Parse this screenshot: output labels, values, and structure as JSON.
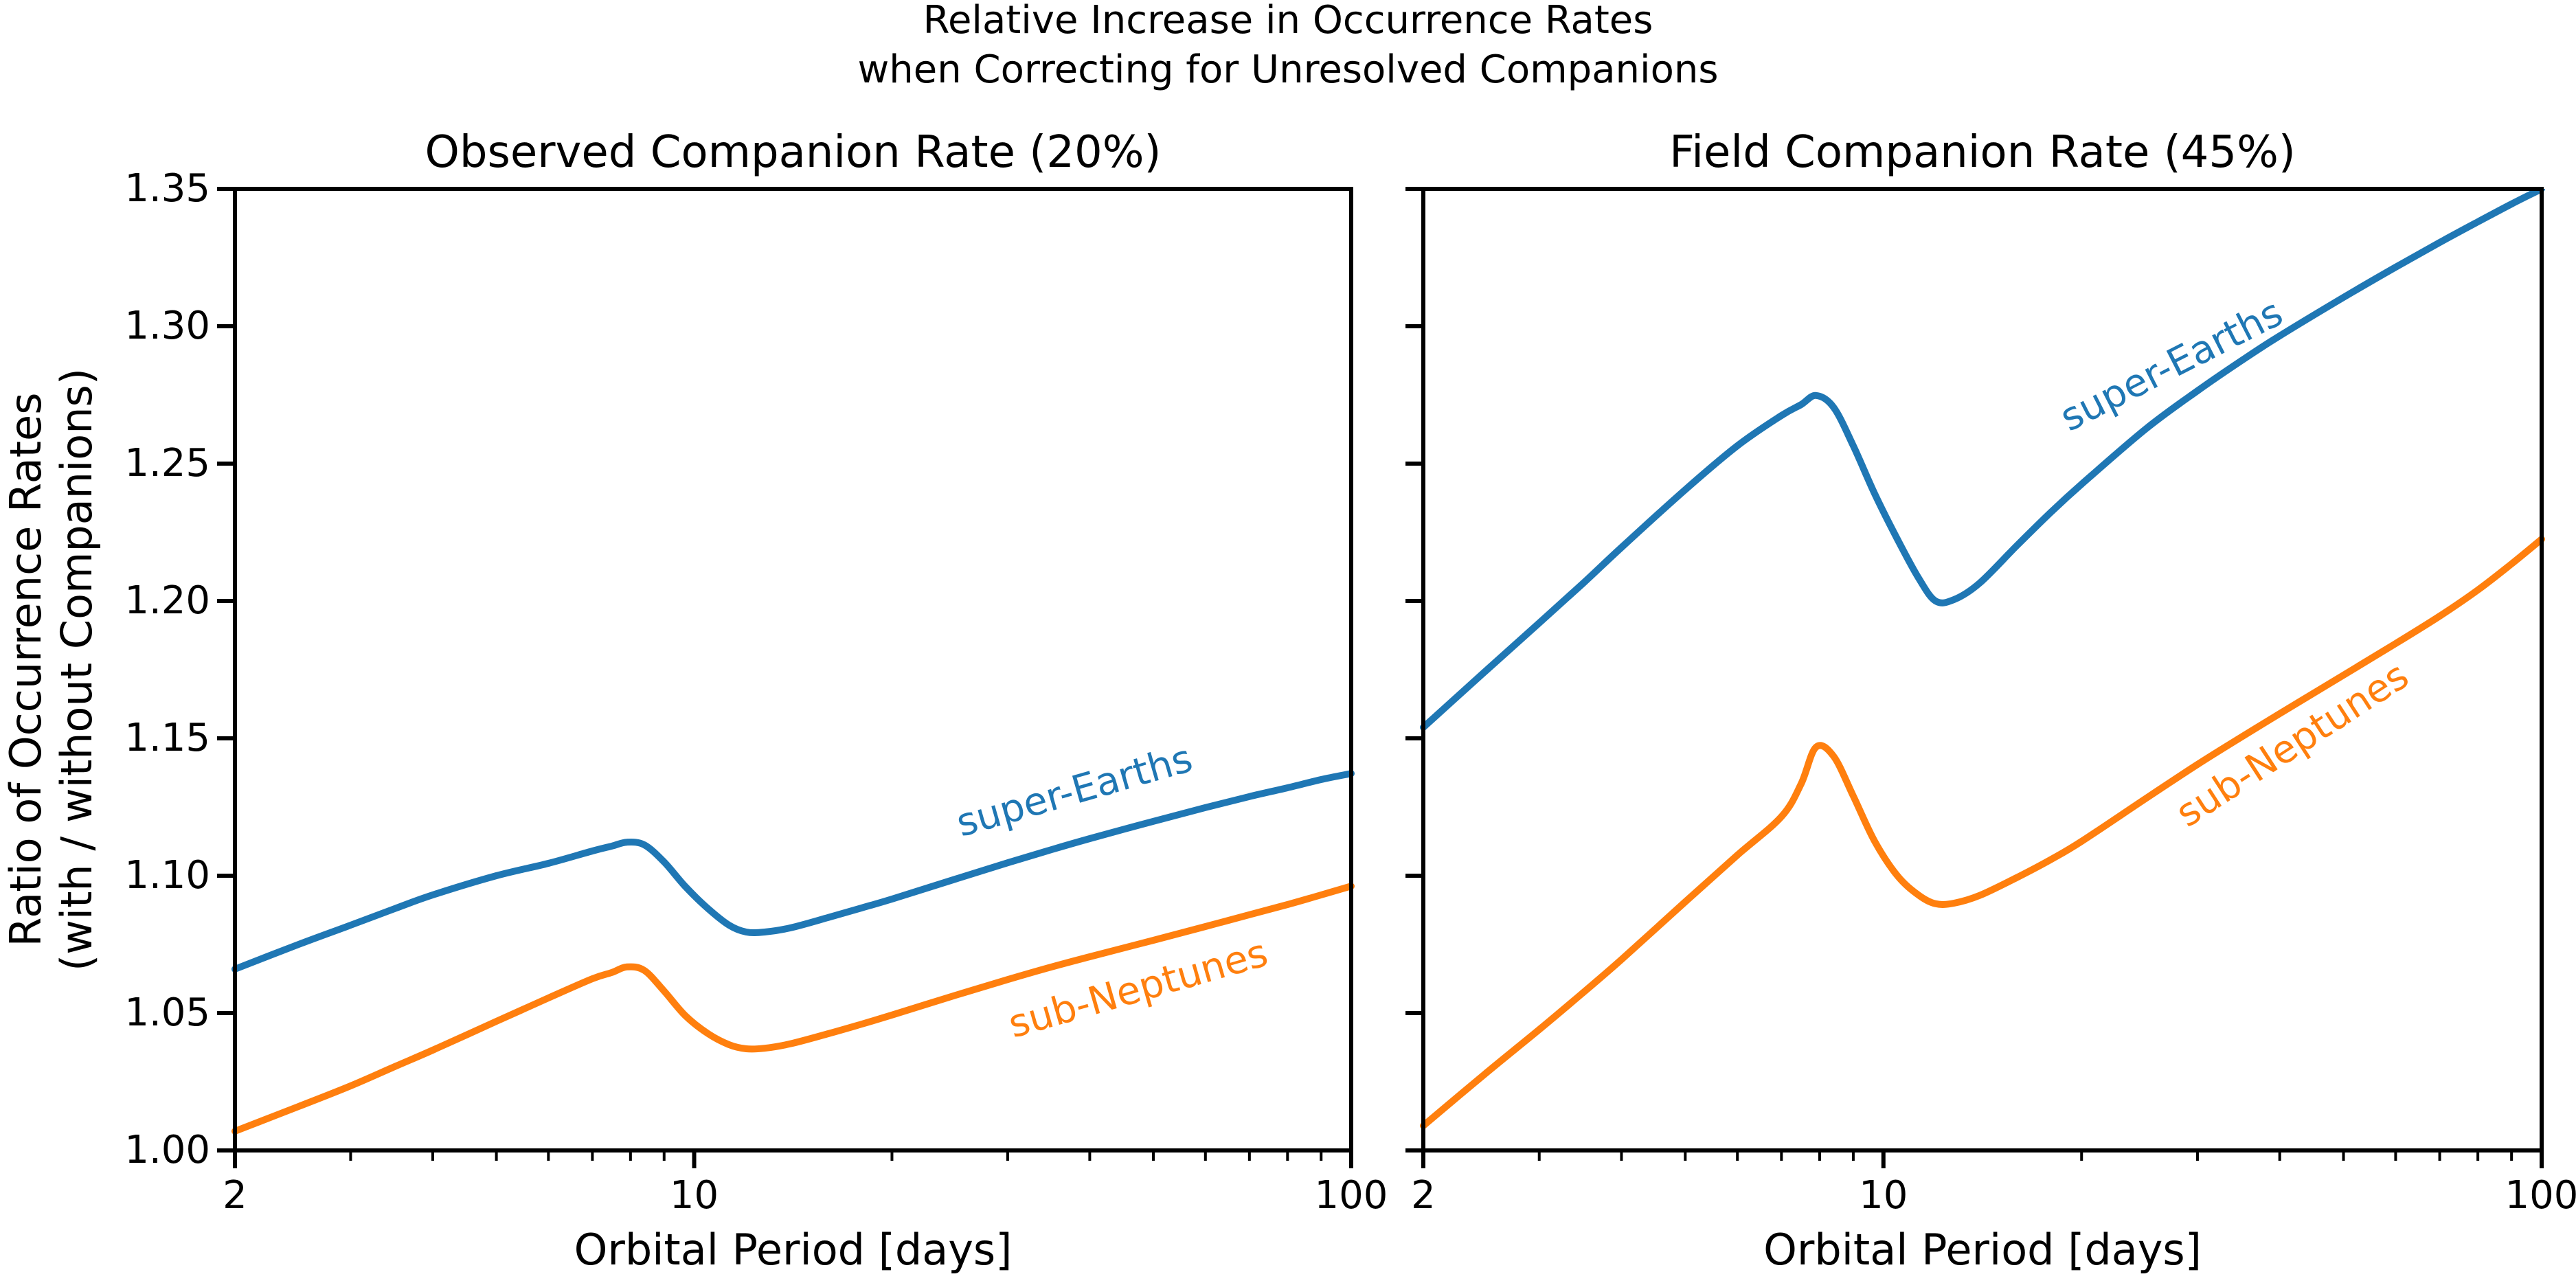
{
  "figure_title": {
    "line1": "Relative Increase in Occurrence Rates",
    "line2": "when Correcting for Unresolved Companions"
  },
  "y_axis": {
    "label_line1": "Ratio of Occurrence Rates",
    "label_line2": "(with / without Companions)",
    "tick_values": [
      1.0,
      1.05,
      1.1,
      1.15,
      1.2,
      1.25,
      1.3,
      1.35
    ],
    "tick_labels": [
      "1.00",
      "1.05",
      "1.10",
      "1.15",
      "1.20",
      "1.25",
      "1.30",
      "1.35"
    ]
  },
  "x_axis": {
    "label": "Orbital Period [days]",
    "scale": "log",
    "range": [
      2,
      100
    ],
    "tick_values": [
      2,
      10,
      100
    ],
    "tick_labels": [
      "2",
      "10",
      "100"
    ],
    "minor_tick_values": [
      3,
      4,
      5,
      6,
      7,
      8,
      9,
      20,
      30,
      40,
      50,
      60,
      70,
      80,
      90
    ]
  },
  "colors": {
    "super_earths": "#1f77b4",
    "sub_neptunes": "#ff7f0e",
    "axis": "#000000",
    "background": "#ffffff"
  },
  "chart_data": [
    {
      "type": "line",
      "title": "Observed Companion Rate (20%)",
      "xlabel": "Orbital Period [days]",
      "ylabel": "Ratio of Occurrence Rates (with / without Companions)",
      "xscale": "log",
      "xlim": [
        2,
        100
      ],
      "ylim": [
        1.0,
        1.35
      ],
      "x_major_ticks": [
        2,
        10,
        100
      ],
      "y_ticks": [
        1.0,
        1.05,
        1.1,
        1.15,
        1.2,
        1.25,
        1.3,
        1.35
      ],
      "grid": false,
      "legend": "in-plot rotated labels",
      "x": [
        2,
        2.5,
        3,
        3.5,
        4,
        5,
        6,
        7,
        7.5,
        7.9,
        8.4,
        9,
        9.7,
        10.5,
        11.3,
        12,
        12.8,
        14,
        16,
        18,
        20,
        25,
        30,
        35,
        40,
        50,
        60,
        70,
        80,
        90,
        100
      ],
      "series": [
        {
          "name": "super-Earths",
          "color": "#1f77b4",
          "y": [
            1.066,
            1.075,
            1.082,
            1.088,
            1.093,
            1.1,
            1.1045,
            1.109,
            1.1108,
            1.1122,
            1.1112,
            1.105,
            1.096,
            1.088,
            1.082,
            1.0795,
            1.0795,
            1.081,
            1.0848,
            1.0883,
            1.0915,
            1.0988,
            1.1047,
            1.1095,
            1.1135,
            1.1198,
            1.1248,
            1.1288,
            1.132,
            1.135,
            1.1372
          ],
          "label_x": 38,
          "label_y": 1.13,
          "label_rotation_deg": -16
        },
        {
          "name": "sub-Neptunes",
          "color": "#ff7f0e",
          "y": [
            1.007,
            1.016,
            1.0235,
            1.0305,
            1.0365,
            1.047,
            1.0555,
            1.0625,
            1.0648,
            1.0668,
            1.0655,
            1.058,
            1.049,
            1.0425,
            1.0385,
            1.037,
            1.0372,
            1.0388,
            1.0425,
            1.046,
            1.0493,
            1.0565,
            1.0622,
            1.0668,
            1.0705,
            1.0765,
            1.0815,
            1.0858,
            1.0895,
            1.093,
            1.0962
          ],
          "label_x": 47.5,
          "label_y": 1.058,
          "label_rotation_deg": -16
        }
      ]
    },
    {
      "type": "line",
      "title": "Field Companion Rate (45%)",
      "xlabel": "Orbital Period [days]",
      "ylabel": "Ratio of Occurrence Rates (with / without Companions)",
      "xscale": "log",
      "xlim": [
        2,
        100
      ],
      "ylim": [
        1.0,
        1.35
      ],
      "x_major_ticks": [
        2,
        10,
        100
      ],
      "y_ticks": [
        1.0,
        1.05,
        1.1,
        1.15,
        1.2,
        1.25,
        1.3,
        1.35
      ],
      "grid": false,
      "legend": "in-plot rotated labels",
      "x": [
        2,
        2.5,
        3,
        3.5,
        4,
        5,
        6,
        7,
        7.5,
        7.9,
        8.4,
        9,
        9.7,
        10.5,
        11.3,
        12,
        12.8,
        14,
        16,
        18,
        20,
        25,
        30,
        35,
        40,
        50,
        60,
        70,
        80,
        90,
        100
      ],
      "series": [
        {
          "name": "super-Earths",
          "color": "#1f77b4",
          "y": [
            1.154,
            1.175,
            1.192,
            1.2065,
            1.2195,
            1.2405,
            1.2565,
            1.2675,
            1.2715,
            1.2748,
            1.2705,
            1.2565,
            1.239,
            1.2225,
            1.2085,
            1.2,
            1.2005,
            1.2065,
            1.2205,
            1.2325,
            1.2425,
            1.2625,
            1.2765,
            1.2875,
            1.2965,
            1.3105,
            1.3215,
            1.3305,
            1.338,
            1.3445,
            1.35
          ],
          "label_x": 27.5,
          "label_y": 1.285,
          "label_rotation_deg": -27
        },
        {
          "name": "sub-Neptunes",
          "color": "#ff7f0e",
          "y": [
            1.009,
            1.0285,
            1.044,
            1.0575,
            1.0695,
            1.0905,
            1.1075,
            1.1215,
            1.1335,
            1.1468,
            1.1435,
            1.129,
            1.1125,
            1.1,
            1.093,
            1.0898,
            1.09,
            1.0928,
            1.0995,
            1.106,
            1.1125,
            1.128,
            1.1405,
            1.1505,
            1.159,
            1.173,
            1.1845,
            1.1945,
            1.204,
            1.2135,
            1.2225
          ],
          "label_x": 42,
          "label_y": 1.147,
          "label_rotation_deg": -33
        }
      ]
    }
  ]
}
